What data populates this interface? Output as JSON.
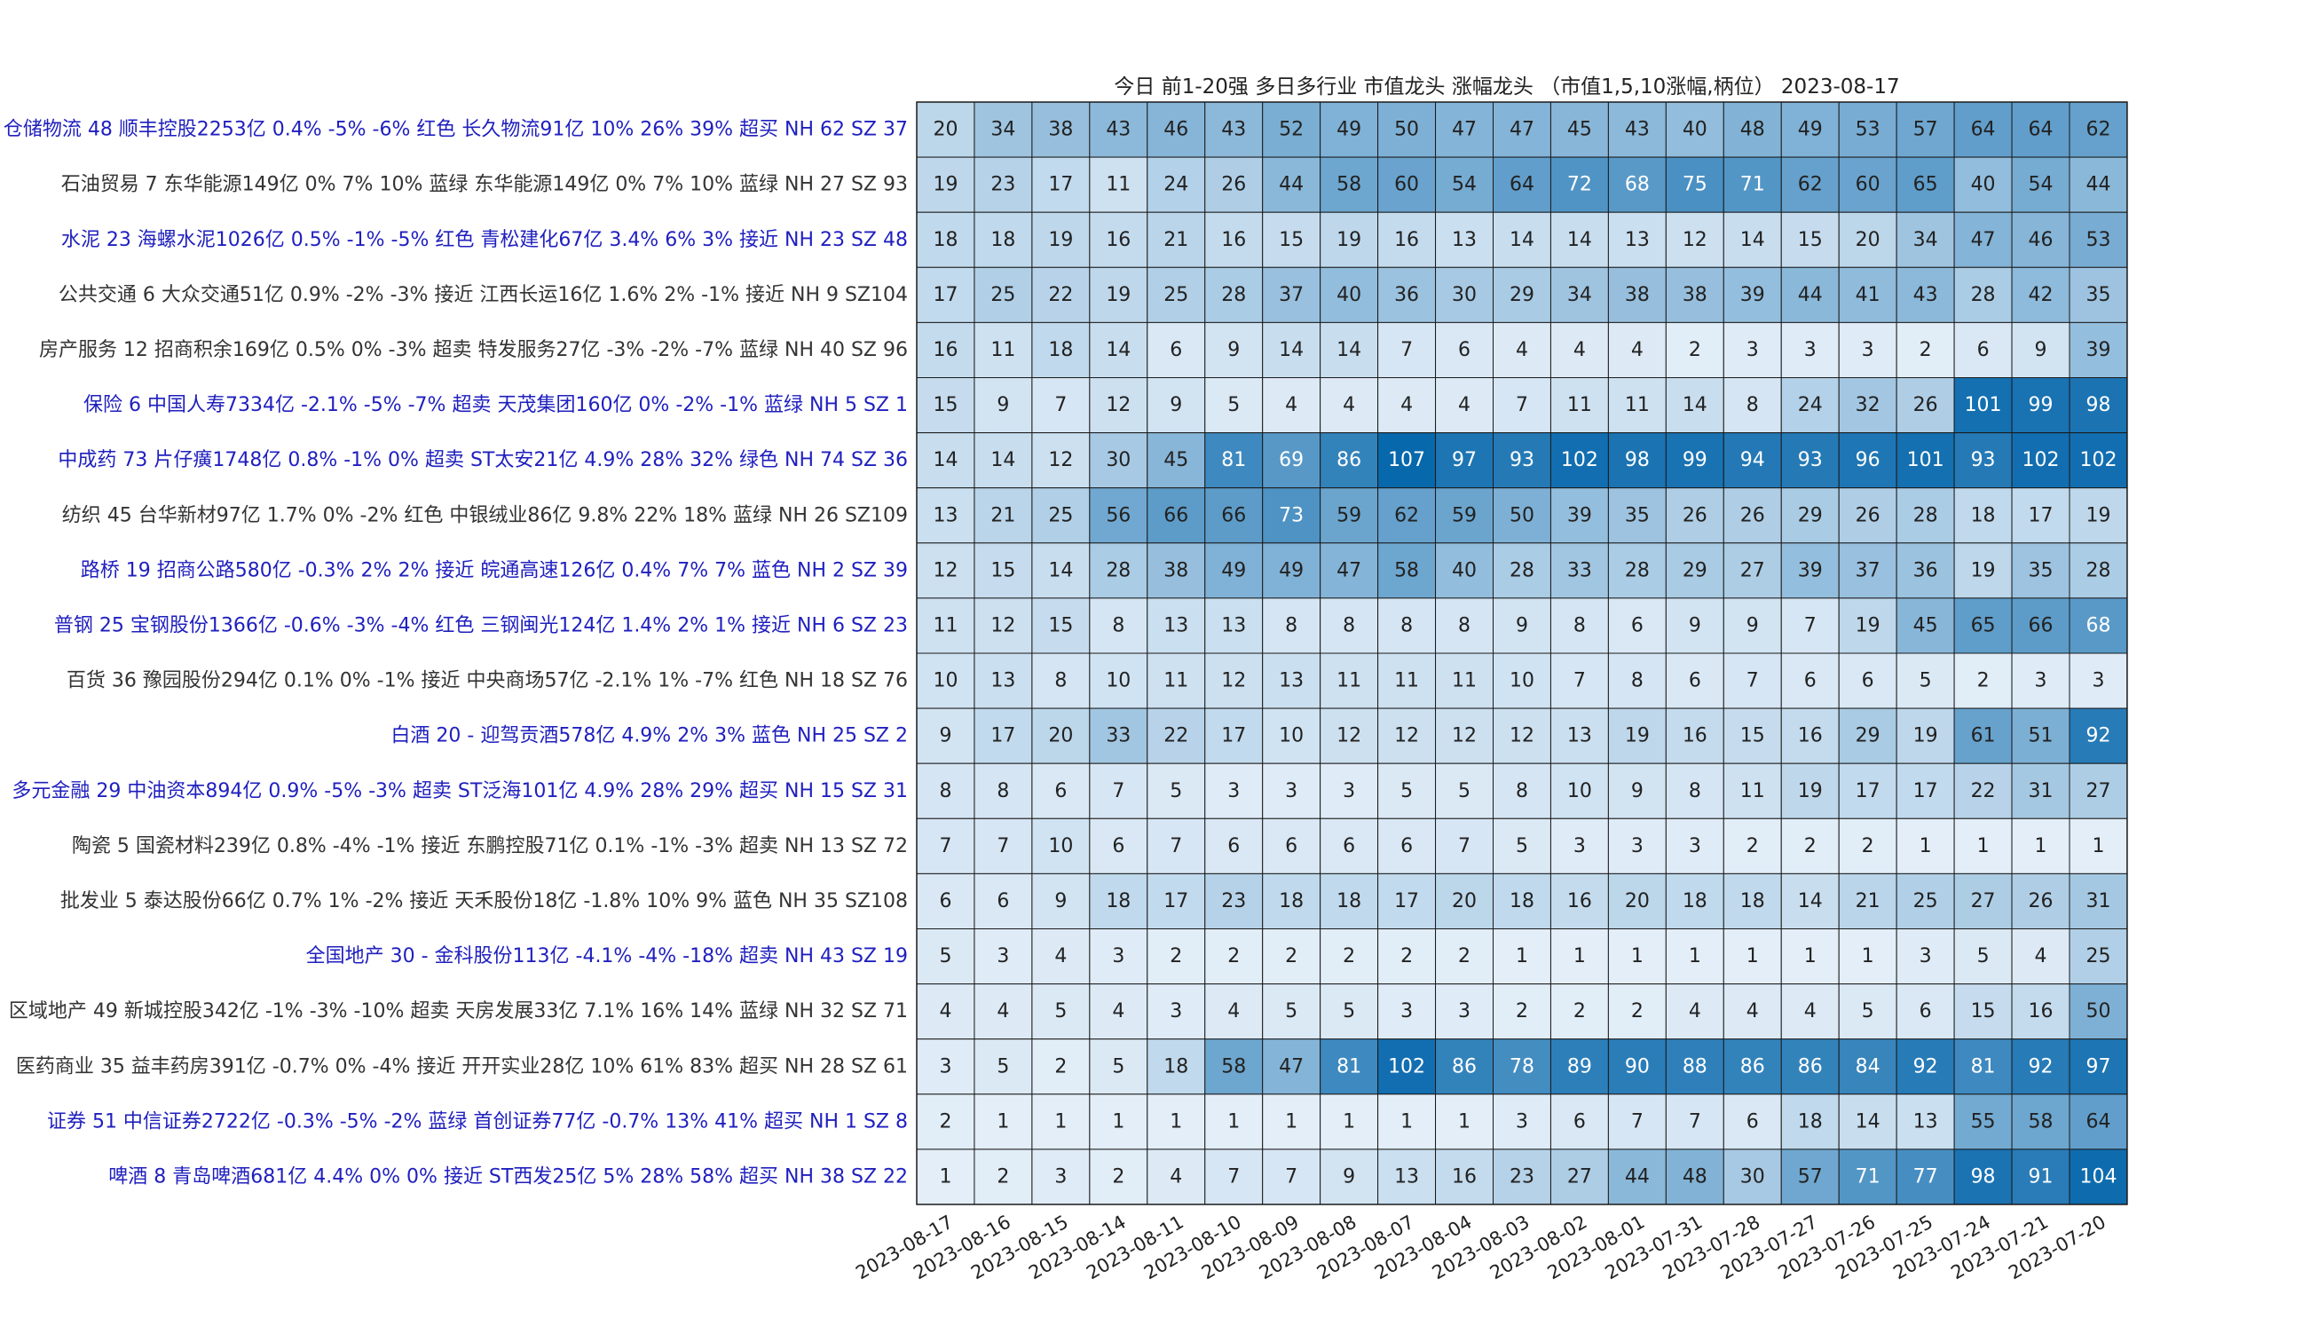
{
  "chart_data": {
    "type": "heatmap",
    "title": "今日 前1-20强  多日多行业 市值龙头 涨幅龙头 （市值1,5,10涨幅,柄位） 2023-08-17",
    "dates": [
      "2023-08-17",
      "2023-08-16",
      "2023-08-15",
      "2023-08-14",
      "2023-08-11",
      "2023-08-10",
      "2023-08-09",
      "2023-08-08",
      "2023-08-07",
      "2023-08-04",
      "2023-08-03",
      "2023-08-02",
      "2023-08-01",
      "2023-07-31",
      "2023-07-28",
      "2023-07-27",
      "2023-07-26",
      "2023-07-25",
      "2023-07-24",
      "2023-07-21",
      "2023-07-20"
    ],
    "color_scale": {
      "min": 1,
      "max": 107,
      "low_color": "#e3eef8",
      "high_color": "#0868ac"
    },
    "rows": [
      {
        "label": "仓储物流 48 顺丰控股2253亿 0.4% -5% -6% 红色  长久物流91亿 10% 26% 39% 超买  NH 62 SZ 37",
        "color": "#1f1fbf",
        "values": [
          20,
          34,
          38,
          43,
          46,
          43,
          52,
          49,
          50,
          47,
          47,
          45,
          43,
          40,
          48,
          49,
          53,
          57,
          64,
          64,
          62
        ]
      },
      {
        "label": "石油贸易  7 东华能源149亿 0% 7% 10% 蓝绿  东华能源149亿 0% 7% 10% 蓝绿  NH 27 SZ 93",
        "color": "#333333",
        "values": [
          19,
          23,
          17,
          11,
          24,
          26,
          44,
          58,
          60,
          54,
          64,
          72,
          68,
          75,
          71,
          62,
          60,
          65,
          40,
          54,
          44
        ]
      },
      {
        "label": "水泥 23 海螺水泥1026亿 0.5% -1% -5% 红色  青松建化67亿 3.4% 6% 3% 接近  NH 23 SZ 48",
        "color": "#1f1fbf",
        "values": [
          18,
          18,
          19,
          16,
          21,
          16,
          15,
          19,
          16,
          13,
          14,
          14,
          13,
          12,
          14,
          15,
          20,
          34,
          47,
          46,
          53
        ]
      },
      {
        "label": "公共交通  6 大众交通51亿 0.9% -2% -3% 接近  江西长运16亿 1.6% 2% -1% 接近  NH  9 SZ104",
        "color": "#333333",
        "values": [
          17,
          25,
          22,
          19,
          25,
          28,
          37,
          40,
          36,
          30,
          29,
          34,
          38,
          38,
          39,
          44,
          41,
          43,
          28,
          42,
          35
        ]
      },
      {
        "label": "房产服务 12 招商积余169亿 0.5% 0% -3% 超卖  特发服务27亿 -3% -2% -7% 蓝绿  NH 40 SZ 96",
        "color": "#333333",
        "values": [
          16,
          11,
          18,
          14,
          6,
          9,
          14,
          14,
          7,
          6,
          4,
          4,
          4,
          2,
          3,
          3,
          3,
          2,
          6,
          9,
          39
        ]
      },
      {
        "label": "保险  6 中国人寿7334亿 -2.1% -5% -7% 超卖  天茂集团160亿 0% -2% -1% 蓝绿  NH  5 SZ  1",
        "color": "#1f1fbf",
        "values": [
          15,
          9,
          7,
          12,
          9,
          5,
          4,
          4,
          4,
          4,
          7,
          11,
          11,
          14,
          8,
          24,
          32,
          26,
          101,
          99,
          98
        ]
      },
      {
        "label": "中成药 73 片仔癀1748亿 0.8% -1% 0% 超卖  ST太安21亿 4.9% 28% 32% 绿色  NH 74 SZ 36",
        "color": "#1f1fbf",
        "values": [
          14,
          14,
          12,
          30,
          45,
          81,
          69,
          86,
          107,
          97,
          93,
          102,
          98,
          99,
          94,
          93,
          96,
          101,
          93,
          102,
          102
        ]
      },
      {
        "label": "纺织 45 台华新材97亿 1.7% 0% -2% 红色  中银绒业86亿 9.8% 22% 18% 蓝绿  NH 26 SZ109",
        "color": "#333333",
        "values": [
          13,
          21,
          25,
          56,
          66,
          66,
          73,
          59,
          62,
          59,
          50,
          39,
          35,
          26,
          26,
          29,
          26,
          28,
          18,
          17,
          19
        ]
      },
      {
        "label": "路桥 19 招商公路580亿 -0.3% 2% 2% 接近  皖通高速126亿 0.4% 7% 7% 蓝色  NH  2 SZ 39",
        "color": "#1f1fbf",
        "values": [
          12,
          15,
          14,
          28,
          38,
          49,
          49,
          47,
          58,
          40,
          28,
          33,
          28,
          29,
          27,
          39,
          37,
          36,
          19,
          35,
          28
        ]
      },
      {
        "label": "普钢 25 宝钢股份1366亿 -0.6% -3% -4% 红色  三钢闽光124亿 1.4% 2% 1% 接近  NH  6 SZ 23",
        "color": "#1f1fbf",
        "values": [
          11,
          12,
          15,
          8,
          13,
          13,
          8,
          8,
          8,
          8,
          9,
          8,
          6,
          9,
          9,
          7,
          19,
          45,
          65,
          66,
          68
        ]
      },
      {
        "label": "百货 36 豫园股份294亿 0.1% 0% -1% 接近  中央商场57亿 -2.1% 1% -7% 红色  NH 18 SZ 76",
        "color": "#333333",
        "values": [
          10,
          13,
          8,
          10,
          11,
          12,
          13,
          11,
          11,
          11,
          10,
          7,
          8,
          6,
          7,
          6,
          6,
          5,
          2,
          3,
          3
        ]
      },
      {
        "label": "白酒 20 - 迎驾贡酒578亿 4.9% 2% 3% 蓝色  NH 25 SZ  2",
        "color": "#1f1fbf",
        "values": [
          9,
          17,
          20,
          33,
          22,
          17,
          10,
          12,
          12,
          12,
          12,
          13,
          19,
          16,
          15,
          16,
          29,
          19,
          61,
          51,
          92
        ]
      },
      {
        "label": "多元金融 29 中油资本894亿 0.9% -5% -3% 超卖  ST泛海101亿 4.9% 28% 29% 超买  NH 15 SZ 31",
        "color": "#1f1fbf",
        "values": [
          8,
          8,
          6,
          7,
          5,
          3,
          3,
          3,
          5,
          5,
          8,
          10,
          9,
          8,
          11,
          19,
          17,
          17,
          22,
          31,
          27
        ]
      },
      {
        "label": "陶瓷  5 国瓷材料239亿 0.8% -4% -1% 接近  东鹏控股71亿 0.1% -1% -3% 超卖  NH 13 SZ 72",
        "color": "#333333",
        "values": [
          7,
          7,
          10,
          6,
          7,
          6,
          6,
          6,
          6,
          7,
          5,
          3,
          3,
          3,
          2,
          2,
          2,
          1,
          1,
          1,
          1
        ]
      },
      {
        "label": "批发业  5 泰达股份66亿 0.7% 1% -2% 接近  天禾股份18亿 -1.8% 10% 9% 蓝色  NH 35 SZ108",
        "color": "#333333",
        "values": [
          6,
          6,
          9,
          18,
          17,
          23,
          18,
          18,
          17,
          20,
          18,
          16,
          20,
          18,
          18,
          14,
          21,
          25,
          27,
          26,
          31
        ]
      },
      {
        "label": "全国地产 30 - 金科股份113亿 -4.1% -4% -18% 超卖  NH 43 SZ 19",
        "color": "#1f1fbf",
        "values": [
          5,
          3,
          4,
          3,
          2,
          2,
          2,
          2,
          2,
          2,
          1,
          1,
          1,
          1,
          1,
          1,
          1,
          3,
          5,
          4,
          25
        ]
      },
      {
        "label": "区域地产 49 新城控股342亿 -1% -3% -10% 超卖  天房发展33亿 7.1% 16% 14% 蓝绿  NH 32 SZ 71",
        "color": "#333333",
        "values": [
          4,
          4,
          5,
          4,
          3,
          4,
          5,
          5,
          3,
          3,
          2,
          2,
          2,
          4,
          4,
          4,
          5,
          6,
          15,
          16,
          50
        ]
      },
      {
        "label": "医药商业 35 益丰药房391亿 -0.7% 0% -4% 接近  开开实业28亿 10% 61% 83% 超买  NH 28 SZ 61",
        "color": "#333333",
        "values": [
          3,
          5,
          2,
          5,
          18,
          58,
          47,
          81,
          102,
          86,
          78,
          89,
          90,
          88,
          86,
          86,
          84,
          92,
          81,
          92,
          97
        ]
      },
      {
        "label": "证券 51 中信证券2722亿 -0.3% -5% -2% 蓝绿  首创证券77亿 -0.7% 13% 41% 超买  NH  1 SZ  8",
        "color": "#1f1fbf",
        "values": [
          2,
          1,
          1,
          1,
          1,
          1,
          1,
          1,
          1,
          1,
          3,
          6,
          7,
          7,
          6,
          18,
          14,
          13,
          55,
          58,
          64
        ]
      },
      {
        "label": "啤酒  8 青岛啤酒681亿 4.4% 0% 0% 接近  ST西发25亿 5% 28% 58% 超买  NH 38 SZ 22",
        "color": "#1f1fbf",
        "values": [
          1,
          2,
          3,
          2,
          4,
          7,
          7,
          9,
          13,
          16,
          23,
          27,
          44,
          48,
          30,
          57,
          71,
          77,
          98,
          91,
          104
        ]
      }
    ]
  }
}
